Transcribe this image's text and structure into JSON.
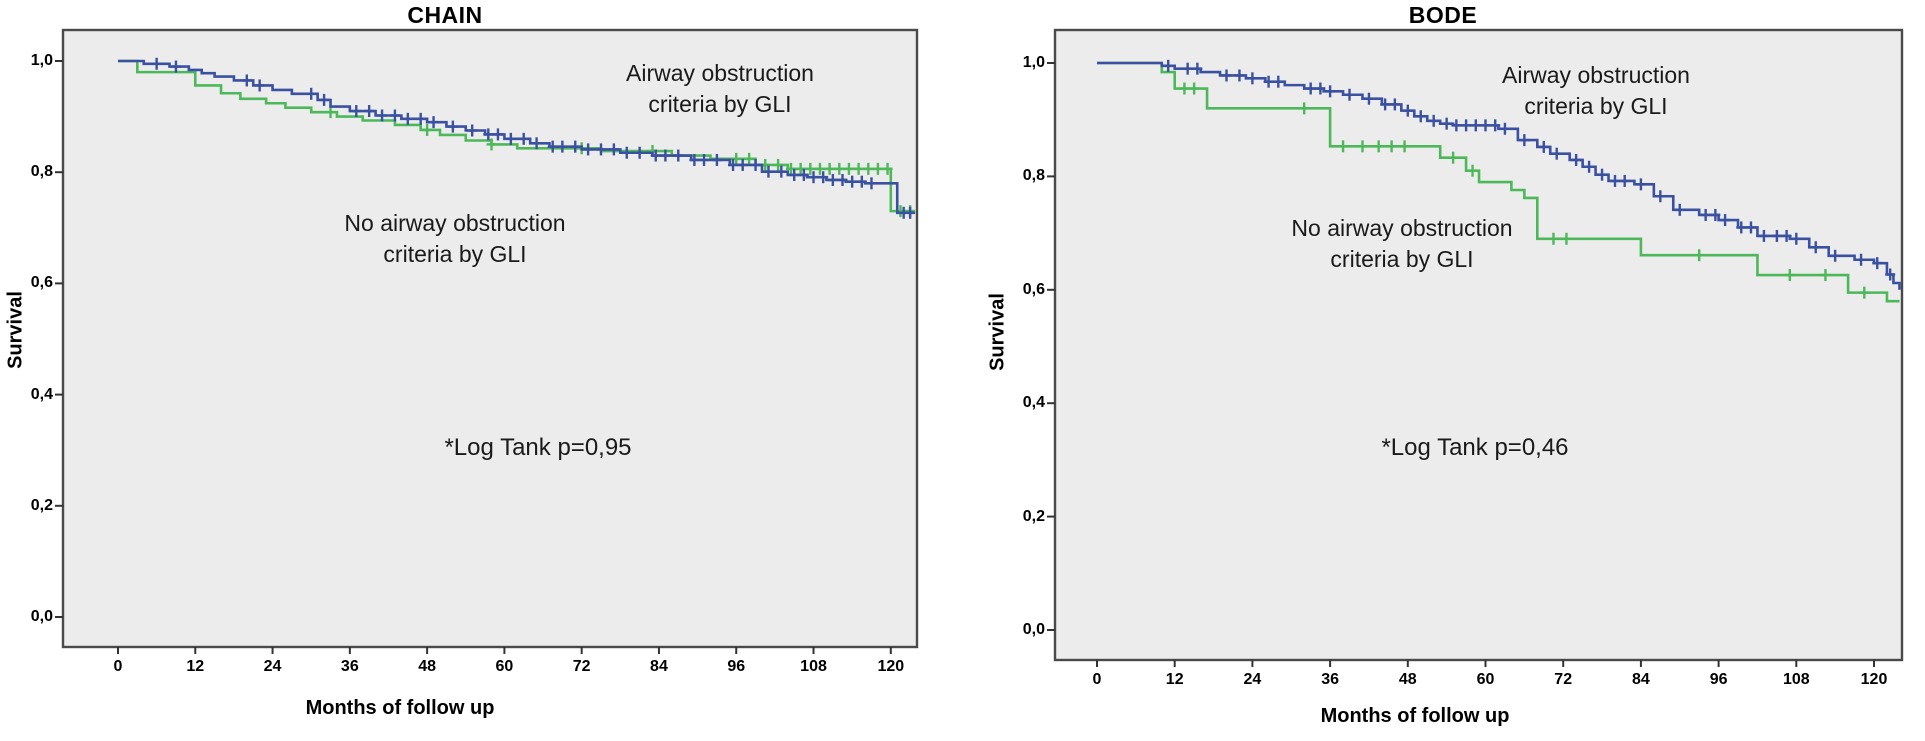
{
  "figure": {
    "description": "Two Kaplan-Meier survival plots comparing airway obstruction criteria by GLI",
    "background_color": "#ffffff",
    "plot_background_color": "#ececec",
    "border_color": "#4a4a4a"
  },
  "chart_data": [
    {
      "type": "line",
      "variant": "kaplan-meier-step",
      "title": "CHAIN",
      "xlabel": "Months of follow up",
      "ylabel": "Survival",
      "xlim": [
        -8.5,
        124
      ],
      "ylim": [
        -0.054,
        1.056
      ],
      "x_ticks": [
        0,
        12,
        24,
        36,
        48,
        60,
        72,
        84,
        96,
        108,
        120
      ],
      "x_tick_labels": [
        "0",
        "12",
        "24",
        "36",
        "48",
        "60",
        "72",
        "84",
        "96",
        "108",
        "120"
      ],
      "y_ticks": [
        0.0,
        0.2,
        0.4,
        0.6,
        0.8,
        1.0
      ],
      "y_tick_labels": [
        "0,0",
        "0,2",
        "0,4",
        "0,6",
        "0,8",
        "1,0"
      ],
      "grid": false,
      "legend_position": "in-plot-text",
      "annotations": [
        {
          "id": "group1-label",
          "text": "Airway obstruction\ncriteria by GLI"
        },
        {
          "id": "group2-label",
          "text": "No airway obstruction\ncriteria by GLI"
        },
        {
          "id": "pvalue-label",
          "text": "*Log Tank p=0,95"
        }
      ],
      "series": [
        {
          "name": "Airway obstruction criteria by GLI",
          "color": "#3A50A0",
          "points": [
            [
              0,
              1
            ],
            [
              4,
              0.995
            ],
            [
              8,
              0.99
            ],
            [
              11,
              0.984
            ],
            [
              13,
              0.978
            ],
            [
              15,
              0.972
            ],
            [
              18,
              0.965
            ],
            [
              21,
              0.956
            ],
            [
              24,
              0.948
            ],
            [
              27,
              0.941
            ],
            [
              31,
              0.93
            ],
            [
              33,
              0.918
            ],
            [
              36,
              0.91
            ],
            [
              40,
              0.902
            ],
            [
              44,
              0.896
            ],
            [
              48,
              0.89
            ],
            [
              51,
              0.882
            ],
            [
              54,
              0.875
            ],
            [
              57,
              0.868
            ],
            [
              60,
              0.86
            ],
            [
              64,
              0.852
            ],
            [
              67,
              0.846
            ],
            [
              72,
              0.841
            ],
            [
              78,
              0.835
            ],
            [
              83,
              0.83
            ],
            [
              89,
              0.822
            ],
            [
              95,
              0.813
            ],
            [
              100,
              0.801
            ],
            [
              104,
              0.795
            ],
            [
              107,
              0.791
            ],
            [
              110,
              0.786
            ],
            [
              113,
              0.783
            ],
            [
              116,
              0.78
            ],
            [
              121,
              0.727
            ],
            [
              124,
              0.727
            ]
          ],
          "censor_times": [
            6,
            9,
            20,
            22,
            30,
            32,
            37,
            39,
            41,
            43,
            45,
            47,
            49,
            52,
            55,
            57.5,
            59,
            61,
            63,
            65,
            67.5,
            69,
            71,
            73,
            75,
            77,
            79,
            81,
            83.5,
            85,
            87,
            89.5,
            91,
            93,
            95.5,
            97,
            99,
            101,
            103,
            105,
            106.5,
            108,
            109.5,
            111,
            112.5,
            114,
            115.5,
            117,
            122,
            123
          ]
        },
        {
          "name": "No airway obstruction criteria by GLI",
          "color": "#4DB85A",
          "points": [
            [
              0,
              1
            ],
            [
              3,
              0.98
            ],
            [
              12,
              0.956
            ],
            [
              16,
              0.942
            ],
            [
              19,
              0.932
            ],
            [
              23,
              0.924
            ],
            [
              26,
              0.916
            ],
            [
              30,
              0.908
            ],
            [
              34,
              0.9
            ],
            [
              38,
              0.893
            ],
            [
              43,
              0.885
            ],
            [
              47,
              0.876
            ],
            [
              50,
              0.867
            ],
            [
              54,
              0.857
            ],
            [
              58,
              0.85
            ],
            [
              62,
              0.843
            ],
            [
              75,
              0.838
            ],
            [
              86,
              0.83
            ],
            [
              92,
              0.824
            ],
            [
              99,
              0.813
            ],
            [
              104,
              0.806
            ],
            [
              120,
              0.73
            ],
            [
              124,
              0.73
            ]
          ],
          "censor_times": [
            33,
            48,
            58,
            72,
            83,
            96,
            98,
            100.5,
            102.5,
            104.5,
            106,
            107.5,
            109,
            110.5,
            112,
            113.5,
            115,
            116.5,
            118,
            119.5,
            121.5,
            123
          ]
        }
      ]
    },
    {
      "type": "line",
      "variant": "kaplan-meier-step",
      "title": "BODE",
      "xlabel": "Months of follow up",
      "ylabel": "Survival",
      "xlim": [
        -6.5,
        124.3
      ],
      "ylim": [
        -0.053,
        1.058
      ],
      "x_ticks": [
        0,
        12,
        24,
        36,
        48,
        60,
        72,
        84,
        96,
        108,
        120
      ],
      "x_tick_labels": [
        "0",
        "12",
        "24",
        "36",
        "48",
        "60",
        "72",
        "84",
        "96",
        "108",
        "120"
      ],
      "y_ticks": [
        0.0,
        0.2,
        0.4,
        0.6,
        0.8,
        1.0
      ],
      "y_tick_labels": [
        "0,0",
        "0,2",
        "0,4",
        "0,6",
        "0,8",
        "1,0"
      ],
      "grid": false,
      "legend_position": "in-plot-text",
      "annotations": [
        {
          "id": "group1-label",
          "text": "Airway obstruction\ncriteria by GLI"
        },
        {
          "id": "group2-label",
          "text": "No airway obstruction\ncriteria by GLI"
        },
        {
          "id": "pvalue-label",
          "text": "*Log Tank p=0,46"
        }
      ],
      "series": [
        {
          "name": "Airway obstruction criteria by GLI",
          "color": "#3A50A0",
          "points": [
            [
              0,
              1
            ],
            [
              10,
              0.995
            ],
            [
              12,
              0.99
            ],
            [
              16,
              0.984
            ],
            [
              19,
              0.978
            ],
            [
              23,
              0.973
            ],
            [
              26,
              0.967
            ],
            [
              29,
              0.961
            ],
            [
              32,
              0.955
            ],
            [
              35,
              0.95
            ],
            [
              38,
              0.944
            ],
            [
              41,
              0.937
            ],
            [
              44,
              0.927
            ],
            [
              47,
              0.916
            ],
            [
              49,
              0.906
            ],
            [
              51,
              0.898
            ],
            [
              53,
              0.893
            ],
            [
              55,
              0.89
            ],
            [
              62,
              0.884
            ],
            [
              65,
              0.864
            ],
            [
              68,
              0.852
            ],
            [
              70,
              0.84
            ],
            [
              73,
              0.829
            ],
            [
              75,
              0.817
            ],
            [
              77,
              0.803
            ],
            [
              79,
              0.792
            ],
            [
              83,
              0.786
            ],
            [
              86,
              0.765
            ],
            [
              89,
              0.741
            ],
            [
              93,
              0.732
            ],
            [
              96,
              0.723
            ],
            [
              99,
              0.71
            ],
            [
              102,
              0.695
            ],
            [
              107,
              0.69
            ],
            [
              110,
              0.675
            ],
            [
              113,
              0.66
            ],
            [
              117,
              0.653
            ],
            [
              120,
              0.647
            ],
            [
              122,
              0.627
            ],
            [
              123,
              0.612
            ],
            [
              124,
              0.6
            ]
          ],
          "censor_times": [
            11,
            14,
            15.5,
            20,
            22,
            24,
            26.5,
            28,
            33,
            34.5,
            36,
            39,
            42,
            44.5,
            46,
            48,
            50,
            52,
            54,
            55.5,
            57,
            58.5,
            60,
            61.5,
            63,
            66,
            69,
            71,
            74,
            76,
            78,
            80,
            81.5,
            84,
            87,
            90,
            94,
            95.5,
            97,
            99.5,
            101,
            103,
            105,
            106.5,
            108,
            111,
            114,
            118,
            120.5,
            122.5
          ]
        },
        {
          "name": "No airway obstruction criteria by GLI",
          "color": "#4DB85A",
          "points": [
            [
              0,
              1
            ],
            [
              10,
              0.984
            ],
            [
              12,
              0.955
            ],
            [
              17,
              0.92
            ],
            [
              36,
              0.853
            ],
            [
              53,
              0.833
            ],
            [
              57,
              0.81
            ],
            [
              59,
              0.79
            ],
            [
              64,
              0.776
            ],
            [
              66,
              0.762
            ],
            [
              68,
              0.69
            ],
            [
              84,
              0.661
            ],
            [
              102,
              0.626
            ],
            [
              116,
              0.595
            ],
            [
              122,
              0.58
            ],
            [
              124,
              0.58
            ]
          ],
          "censor_times": [
            13.5,
            15,
            32,
            38,
            41,
            43.5,
            45.5,
            47.5,
            55,
            58,
            70.5,
            72.5,
            93,
            107,
            112.5,
            118.5
          ]
        }
      ]
    }
  ]
}
